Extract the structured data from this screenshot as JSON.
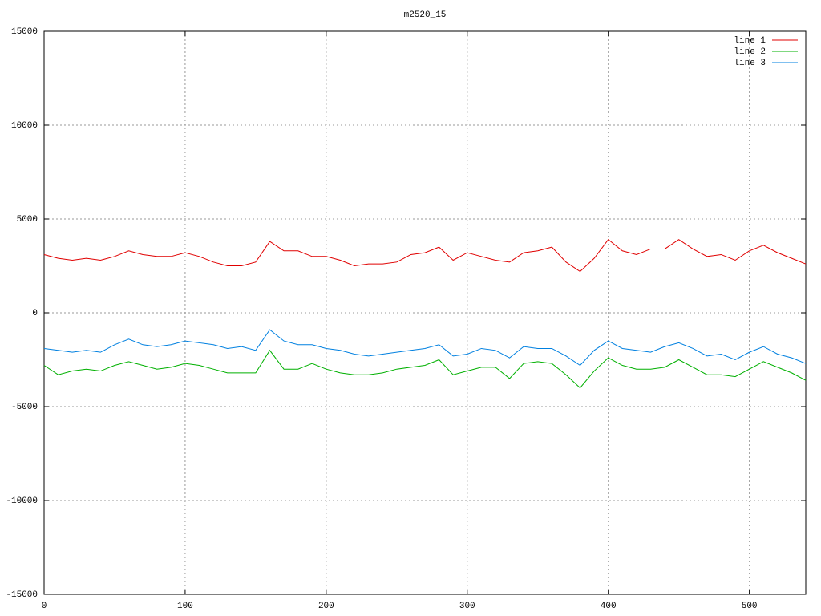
{
  "chart_data": {
    "type": "line",
    "title": "m2520_15",
    "x": [
      0,
      10,
      20,
      30,
      40,
      50,
      60,
      70,
      80,
      90,
      100,
      110,
      120,
      130,
      140,
      150,
      160,
      170,
      180,
      190,
      200,
      210,
      220,
      230,
      240,
      250,
      260,
      270,
      280,
      290,
      300,
      310,
      320,
      330,
      340,
      350,
      360,
      370,
      380,
      390,
      400,
      410,
      420,
      430,
      440,
      450,
      460,
      470,
      480,
      490,
      500,
      510,
      520,
      530,
      540
    ],
    "series": [
      {
        "name": "line 1",
        "color": "#e00000",
        "values": [
          3100,
          2900,
          2800,
          2900,
          2800,
          3000,
          3300,
          3100,
          3000,
          3000,
          3200,
          3000,
          2700,
          2500,
          2500,
          2700,
          3800,
          3300,
          3300,
          3000,
          3000,
          2800,
          2500,
          2600,
          2600,
          2700,
          3100,
          3200,
          3500,
          2800,
          3200,
          3000,
          2800,
          2700,
          3200,
          3300,
          3500,
          2700,
          2200,
          2900,
          3900,
          3300,
          3100,
          3400,
          3400,
          3900,
          3400,
          3000,
          3100,
          2800,
          3300,
          3600,
          3200,
          2900,
          2600
        ]
      },
      {
        "name": "line 2",
        "color": "#00b000",
        "values": [
          -2800,
          -3300,
          -3100,
          -3000,
          -3100,
          -2800,
          -2600,
          -2800,
          -3000,
          -2900,
          -2700,
          -2800,
          -3000,
          -3200,
          -3200,
          -3200,
          -2000,
          -3000,
          -3000,
          -2700,
          -3000,
          -3200,
          -3300,
          -3300,
          -3200,
          -3000,
          -2900,
          -2800,
          -2500,
          -3300,
          -3100,
          -2900,
          -2900,
          -3500,
          -2700,
          -2600,
          -2700,
          -3300,
          -4000,
          -3100,
          -2400,
          -2800,
          -3000,
          -3000,
          -2900,
          -2500,
          -2900,
          -3300,
          -3300,
          -3400,
          -3000,
          -2600,
          -2900,
          -3200,
          -3600
        ]
      },
      {
        "name": "line 3",
        "color": "#0080e0",
        "values": [
          -1900,
          -2000,
          -2100,
          -2000,
          -2100,
          -1700,
          -1400,
          -1700,
          -1800,
          -1700,
          -1500,
          -1600,
          -1700,
          -1900,
          -1800,
          -2000,
          -900,
          -1500,
          -1700,
          -1700,
          -1900,
          -2000,
          -2200,
          -2300,
          -2200,
          -2100,
          -2000,
          -1900,
          -1700,
          -2300,
          -2200,
          -1900,
          -2000,
          -2400,
          -1800,
          -1900,
          -1900,
          -2300,
          -2800,
          -2000,
          -1500,
          -1900,
          -2000,
          -2100,
          -1800,
          -1600,
          -1900,
          -2300,
          -2200,
          -2500,
          -2100,
          -1800,
          -2200,
          -2400,
          -2700
        ]
      }
    ],
    "xlim": [
      0,
      540
    ],
    "xticks": [
      0,
      100,
      200,
      300,
      400,
      500
    ],
    "ylim": [
      -15000,
      15000
    ],
    "yticks": [
      -15000,
      -10000,
      -5000,
      0,
      5000,
      10000,
      15000
    ],
    "grid": true,
    "legend": "top-right"
  }
}
